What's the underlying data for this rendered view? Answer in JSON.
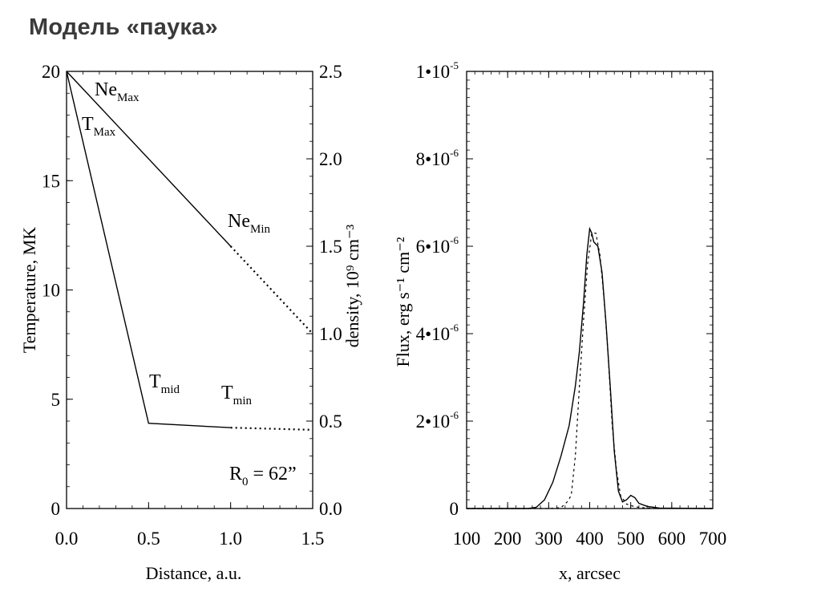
{
  "slide": {
    "title": "Модель «паука»"
  },
  "chart_data": [
    {
      "type": "line",
      "xlabel": "Distance, a.u.",
      "ylabel": "Temperature, MK",
      "y2label": "density, 10⁹ cm⁻³",
      "xlim": [
        0,
        1.5
      ],
      "ylim": [
        0,
        20
      ],
      "y2lim": [
        0,
        2.5
      ],
      "x_ticks": [
        "0.0",
        "0.5",
        "1.0",
        "1.5"
      ],
      "y_ticks": [
        "0",
        "5",
        "10",
        "15",
        "20"
      ],
      "y2_ticks": [
        "0.0",
        "0.5",
        "1.0",
        "1.5",
        "2.0",
        "2.5"
      ],
      "series": [
        {
          "axis": "right",
          "style": "solid",
          "points": [
            [
              0,
              2.5
            ],
            [
              1.0,
              1.5
            ]
          ]
        },
        {
          "axis": "right",
          "style": "dotted",
          "points": [
            [
              1.0,
              1.5
            ],
            [
              1.5,
              1.0
            ]
          ]
        },
        {
          "axis": "left",
          "style": "solid",
          "points": [
            [
              0,
              20
            ],
            [
              0.5,
              3.9
            ],
            [
              1.0,
              3.7
            ]
          ]
        },
        {
          "axis": "left",
          "style": "dotted",
          "points": [
            [
              1.0,
              3.7
            ],
            [
              1.5,
              3.6
            ]
          ]
        }
      ],
      "annotations": {
        "ne_max": {
          "main": "Ne",
          "sub": "Max"
        },
        "t_max": {
          "main": "T",
          "sub": "Max"
        },
        "ne_min": {
          "main": "Ne",
          "sub": "Min"
        },
        "t_mid": {
          "main": "T",
          "sub": "mid"
        },
        "t_min": {
          "main": "T",
          "sub": "min"
        },
        "r0": {
          "main": "R",
          "sub": "0",
          "rest": " = 62”"
        }
      }
    },
    {
      "type": "line",
      "xlabel": "x, arcsec",
      "ylabel": "Flux, erg s⁻¹ cm⁻²",
      "xlim": [
        100,
        700
      ],
      "ylim": [
        0,
        1e-05
      ],
      "x_ticks": [
        "100",
        "200",
        "300",
        "400",
        "500",
        "600",
        "700"
      ],
      "y_ticks": [
        "0",
        "2•10⁻⁶",
        "4•10⁻⁶",
        "6•10⁻⁶",
        "8•10⁻⁶",
        "1•10⁻⁵"
      ],
      "series": [
        {
          "style": "solid",
          "points": [
            [
              100,
              0
            ],
            [
              250,
              0
            ],
            [
              270,
              3e-08
            ],
            [
              290,
              2e-07
            ],
            [
              310,
              6e-07
            ],
            [
              330,
              1.2e-06
            ],
            [
              350,
              1.9e-06
            ],
            [
              365,
              2.8e-06
            ],
            [
              375,
              3.6e-06
            ],
            [
              385,
              4.7e-06
            ],
            [
              393,
              5.8e-06
            ],
            [
              400,
              6.4e-06
            ],
            [
              405,
              6.3e-06
            ],
            [
              410,
              6.1e-06
            ],
            [
              420,
              6e-06
            ],
            [
              430,
              5.4e-06
            ],
            [
              440,
              4.2e-06
            ],
            [
              450,
              2.8e-06
            ],
            [
              460,
              1.3e-06
            ],
            [
              470,
              4e-07
            ],
            [
              480,
              1.5e-07
            ],
            [
              490,
              2e-07
            ],
            [
              500,
              3e-07
            ],
            [
              510,
              2.5e-07
            ],
            [
              520,
              1.2e-07
            ],
            [
              540,
              5e-08
            ],
            [
              570,
              1e-08
            ],
            [
              700,
              0
            ]
          ]
        },
        {
          "style": "dashed",
          "points": [
            [
              100,
              0
            ],
            [
              300,
              0
            ],
            [
              330,
              2e-08
            ],
            [
              345,
              1.5e-07
            ],
            [
              355,
              3e-07
            ],
            [
              365,
              1.2e-06
            ],
            [
              375,
              2.8e-06
            ],
            [
              385,
              4.3e-06
            ],
            [
              395,
              5.6e-06
            ],
            [
              405,
              6.3e-06
            ],
            [
              415,
              6.3e-06
            ],
            [
              425,
              5.8e-06
            ],
            [
              435,
              4.8e-06
            ],
            [
              445,
              3.5e-06
            ],
            [
              455,
              1.9e-06
            ],
            [
              465,
              9e-07
            ],
            [
              475,
              3e-07
            ],
            [
              490,
              1e-07
            ],
            [
              510,
              4e-08
            ],
            [
              540,
              1e-08
            ],
            [
              700,
              0
            ]
          ]
        }
      ]
    }
  ]
}
